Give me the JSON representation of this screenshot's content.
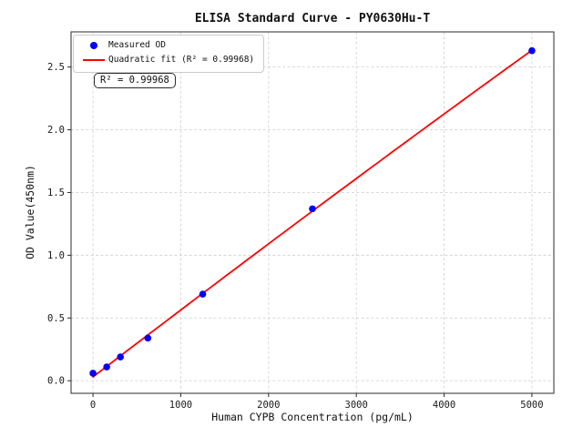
{
  "chart_data": {
    "type": "scatter",
    "title": "ELISA Standard Curve - PY0630Hu-T",
    "xlabel": "Human CYPB Concentration (pg/mL)",
    "ylabel": "OD Value(450nm)",
    "annotation": "R² = 0.99968",
    "r_squared": 0.99968,
    "x": [
      0,
      156.25,
      312.5,
      625,
      1250,
      2500,
      5000
    ],
    "y": [
      0.06,
      0.11,
      0.19,
      0.34,
      0.69,
      1.37,
      2.63
    ],
    "series": [
      {
        "name": "Measured OD",
        "type": "scatter",
        "color": "#0000ff"
      },
      {
        "name": "Quadratic fit (R² = 0.99968)",
        "type": "line",
        "fit": "quadratic",
        "color": "#ff0000"
      }
    ],
    "xticks": [
      0,
      1000,
      2000,
      3000,
      4000,
      5000
    ],
    "yticks": [
      0.0,
      0.5,
      1.0,
      1.5,
      2.0,
      2.5
    ],
    "xlim": [
      -250,
      5250
    ],
    "ylim": [
      -0.1,
      2.78
    ],
    "grid": true,
    "grid_style": "dashed",
    "legend_position": "upper left",
    "colors": {
      "marker": "#0000ff",
      "line": "#ff0000",
      "grid": "#d4d4d4",
      "axis": "#2b2b2b",
      "tick_label": "#1a1a1a"
    }
  }
}
